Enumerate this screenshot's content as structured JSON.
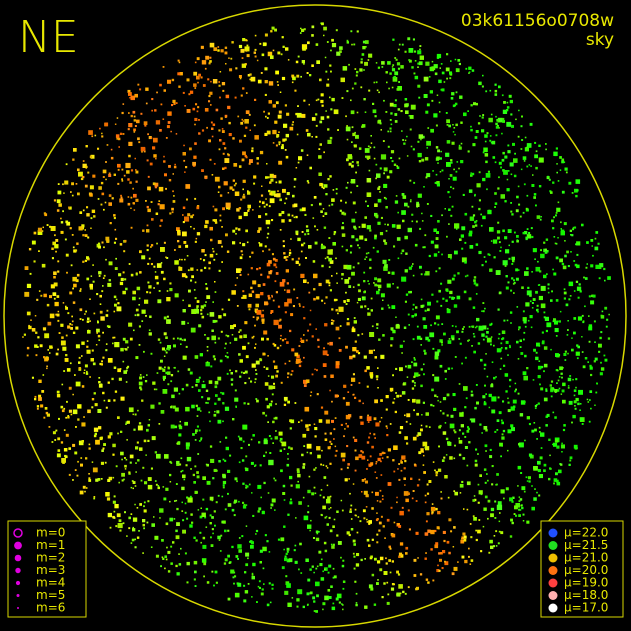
{
  "corner_label": "NE",
  "image_id": "03k61156o0708w",
  "map_kind": "sky",
  "magnitude_legend": {
    "items": [
      "m=0",
      "m=1",
      "m=2",
      "m=3",
      "m=4",
      "m=5",
      "m=6"
    ],
    "color": "#e000e0"
  },
  "brightness_legend": {
    "items": [
      {
        "label": "μ=22.0",
        "color": "#2050ff"
      },
      {
        "label": "μ=21.5",
        "color": "#20e020"
      },
      {
        "label": "μ=21.0",
        "color": "#f0c000"
      },
      {
        "label": "μ=20.0",
        "color": "#ff7010"
      },
      {
        "label": "μ=19.0",
        "color": "#ff4040"
      },
      {
        "label": "μ=18.0",
        "color": "#ffb0b0"
      },
      {
        "label": "μ=17.0",
        "color": "#ffffff"
      }
    ]
  }
}
